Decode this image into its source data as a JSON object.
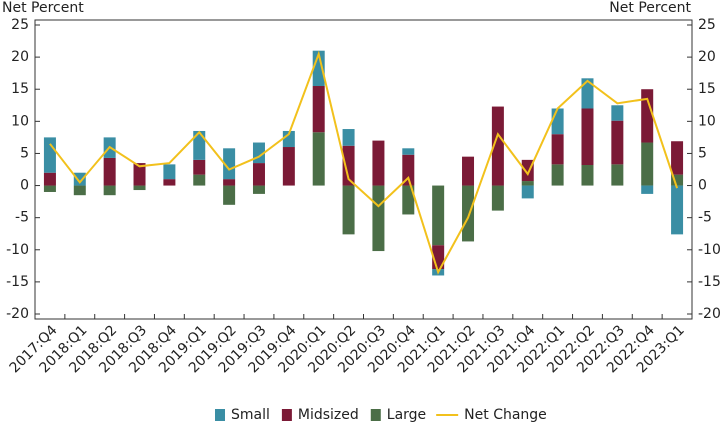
{
  "chart_data": {
    "type": "bar",
    "y_label": "Net Percent",
    "y2_label": "Net Percent",
    "categories": [
      "2017:Q4",
      "2018:Q1",
      "2018:Q2",
      "2018:Q3",
      "2018:Q4",
      "2019:Q1",
      "2019:Q2",
      "2019:Q3",
      "2019:Q4",
      "2020:Q1",
      "2020:Q2",
      "2020:Q3",
      "2020:Q4",
      "2021:Q1",
      "2021:Q2",
      "2021:Q3",
      "2021:Q4",
      "2022:Q1",
      "2022:Q2",
      "2022:Q3",
      "2022:Q4",
      "2023:Q1"
    ],
    "series": [
      {
        "name": "Small",
        "color": "#3a8ea4",
        "values": [
          5.5,
          2,
          3.2,
          0,
          2.3,
          4.5,
          4.8,
          3.2,
          2.5,
          5.5,
          2.6,
          0,
          1,
          -1,
          0,
          0,
          -2,
          4,
          4.7,
          2.4,
          -1.3,
          -7.6
        ]
      },
      {
        "name": "Midsized",
        "color": "#7b1a36",
        "values": [
          2,
          0,
          4.3,
          3.5,
          1,
          2.3,
          1,
          3.5,
          6,
          7.2,
          6.2,
          7,
          4.8,
          -3.7,
          4.5,
          12.3,
          3.3,
          4.7,
          8.8,
          6.8,
          8.3,
          5.2
        ]
      },
      {
        "name": "Large",
        "color": "#4b6e47",
        "values": [
          -1,
          -1.5,
          -1.5,
          -0.7,
          0,
          1.7,
          -3,
          -1.3,
          0,
          8.3,
          -7.6,
          -10.2,
          -4.5,
          -9.3,
          -8.7,
          -3.9,
          0.7,
          3.3,
          3.2,
          3.3,
          6.7,
          1.7
        ]
      },
      {
        "name": "Net Change",
        "type": "line",
        "color": "#f2c11c",
        "values": [
          6.5,
          0.5,
          6,
          3,
          3.5,
          8.3,
          2.5,
          4.5,
          8,
          20.5,
          1,
          -3.2,
          1.2,
          -13.5,
          -5,
          8,
          1.8,
          12,
          16.3,
          12.8,
          13.5,
          -0.4
        ]
      }
    ],
    "ylim": [
      -20,
      25
    ],
    "yticks": [
      -20,
      -15,
      -10,
      -5,
      0,
      5,
      10,
      15,
      20,
      25
    ],
    "y2lim": [
      -20,
      25
    ],
    "y2ticks": [
      -20,
      -15,
      -10,
      -5,
      0,
      5,
      10,
      15,
      20,
      25
    ]
  }
}
